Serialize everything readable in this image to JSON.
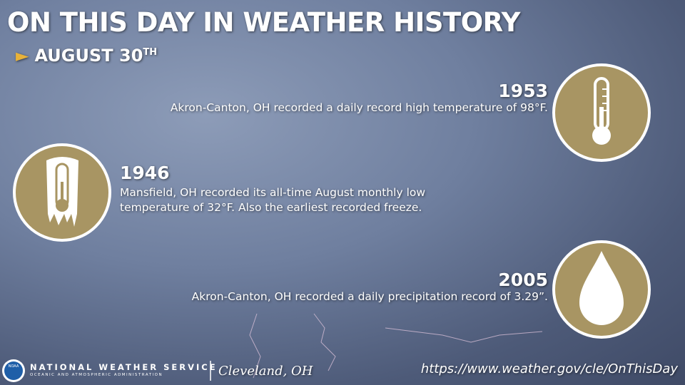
{
  "header": {
    "title": "ON THIS DAY IN WEATHER HISTORY",
    "date": "AUGUST 30",
    "date_suffix": "TH"
  },
  "events": [
    {
      "year": "1953",
      "text": "Akron-Canton, OH recorded a daily record high temperature of 98°F."
    },
    {
      "year": "1946",
      "text": "Mansfield, OH recorded its all-time August monthly low temperature of 32°F. Also the earliest recorded freeze."
    },
    {
      "year": "2005",
      "text": "Akron-Canton, OH recorded a daily precipitation record of 3.29”."
    }
  ],
  "footer": {
    "logo": "NOAA",
    "agency": "NATIONAL WEATHER SERVICE",
    "parent": "OCEANIC AND ATMOSPHERIC ADMINISTRATION",
    "office": "Cleveland, OH",
    "url": "https://www.weather.gov/cle/OnThisDay"
  }
}
